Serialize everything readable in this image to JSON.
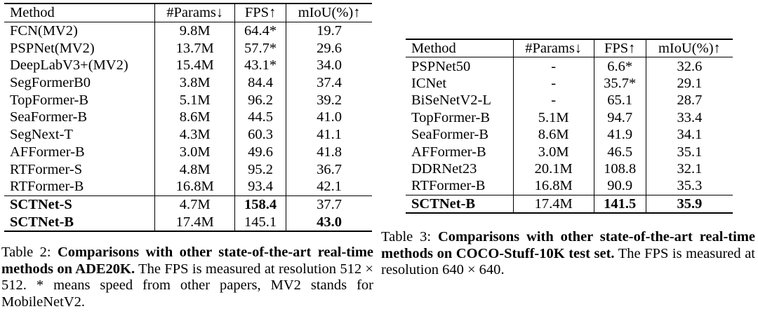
{
  "table2": {
    "headers": [
      "Method",
      "#Params↓",
      "FPS↑",
      "mIoU(%)↑"
    ],
    "rows": [
      [
        "FCN(MV2)",
        "9.8M",
        "64.4*",
        "19.7"
      ],
      [
        "PSPNet(MV2)",
        "13.7M",
        "57.7*",
        "29.6"
      ],
      [
        "DeepLabV3+(MV2)",
        "15.4M",
        "43.1*",
        "34.0"
      ],
      [
        "SegFormerB0",
        "3.8M",
        "84.4",
        "37.4"
      ],
      [
        "TopFormer-B",
        "5.1M",
        "96.2",
        "39.2"
      ],
      [
        "SeaFormer-B",
        "8.6M",
        "44.5",
        "41.0"
      ],
      [
        "SegNext-T",
        "4.3M",
        "60.3",
        "41.1"
      ],
      [
        "AFFormer-B",
        "3.0M",
        "49.6",
        "41.8"
      ],
      [
        "RTFormer-S",
        "4.8M",
        "95.2",
        "36.7"
      ],
      [
        "RTFormer-B",
        "16.8M",
        "93.4",
        "42.1"
      ],
      [
        "SCTNet-S",
        "4.7M",
        "158.4",
        "37.7"
      ],
      [
        "SCTNet-B",
        "17.4M",
        "145.1",
        "43.0"
      ]
    ],
    "caption_label": "Table 2:",
    "caption_title": "Comparisons with other state-of-the-art real-time methods on ADE20K.",
    "caption_text_1": "The FPS is measured at resolution",
    "caption_resolution": "512 × 512",
    "caption_text_2": ". * means speed from other papers, MV2 stands for MobileNetV2."
  },
  "table3": {
    "headers": [
      "Method",
      "#Params↓",
      "FPS↑",
      "mIoU(%)↑"
    ],
    "rows": [
      [
        "PSPNet50",
        "-",
        "6.6*",
        "32.6"
      ],
      [
        "ICNet",
        "-",
        "35.7*",
        "29.1"
      ],
      [
        "BiSeNetV2-L",
        "-",
        "65.1",
        "28.7"
      ],
      [
        "TopFormer-B",
        "5.1M",
        "94.7",
        "33.4"
      ],
      [
        "SeaFormer-B",
        "8.6M",
        "41.9",
        "34.1"
      ],
      [
        "AFFormer-B",
        "3.0M",
        "46.5",
        "35.1"
      ],
      [
        "DDRNet23",
        "20.1M",
        "108.8",
        "32.1"
      ],
      [
        "RTFormer-B",
        "16.8M",
        "90.9",
        "35.3"
      ],
      [
        "SCTNet-B",
        "17.4M",
        "141.5",
        "35.9"
      ]
    ],
    "caption_label": "Table 3:",
    "caption_title": "Comparisons with other state-of-the-art real-time methods on COCO-Stuff-10K test set.",
    "caption_text_1": "The FPS is measured at resolution",
    "caption_resolution": "640 × 640",
    "caption_text_2": "."
  }
}
